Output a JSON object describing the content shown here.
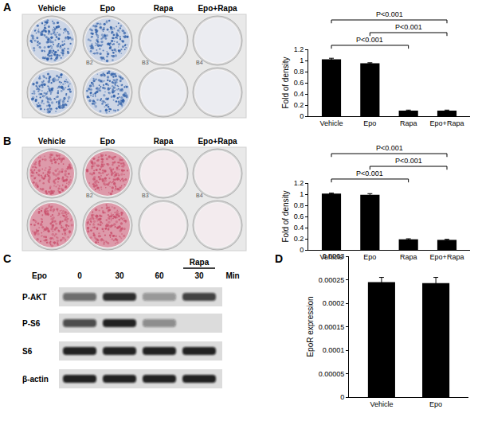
{
  "figure": {
    "panel_labels": [
      "A",
      "B",
      "C",
      "D"
    ],
    "plates": [
      {
        "conditions": [
          "Vehicle",
          "Epo",
          "Rapa",
          "Epo+Rapa"
        ],
        "well_labels": [
          "B2",
          "B3",
          "B4"
        ],
        "color": "#2f5fa8",
        "stained": [
          true,
          true,
          false,
          false
        ]
      },
      {
        "conditions": [
          "Vehicle",
          "Epo",
          "Rapa",
          "Epo+Rapa"
        ],
        "well_labels": [
          "B2",
          "B3",
          "B4"
        ],
        "color": "#c9506c",
        "stained": [
          true,
          true,
          false,
          false
        ]
      }
    ],
    "blot": {
      "treatment_label": "Epo",
      "time_points": [
        0,
        30,
        60,
        30
      ],
      "unit": "Min",
      "inhibitor": {
        "label": "Rapa",
        "applied": [
          false,
          false,
          false,
          true
        ]
      },
      "rows": [
        {
          "name": "P-AKT",
          "intensity": [
            0.55,
            0.85,
            0.35,
            0.75
          ]
        },
        {
          "name": "P-S6",
          "intensity": [
            0.7,
            0.9,
            0.4,
            0.0
          ]
        },
        {
          "name": "S6",
          "intensity": [
            0.9,
            0.9,
            0.9,
            0.9
          ]
        },
        {
          "name": "β-actin",
          "intensity": [
            0.9,
            0.9,
            0.9,
            0.9
          ]
        }
      ]
    }
  },
  "chart_data": [
    {
      "type": "bar",
      "categories": [
        "Vehicle",
        "Epo",
        "Rapa",
        "Epo+Rapa"
      ],
      "values": [
        1.02,
        0.95,
        0.1,
        0.1
      ],
      "errors": [
        0.02,
        0.01,
        0.01,
        0.01
      ],
      "color": "#000000",
      "ylabel": "Fold of density",
      "ylim": [
        0,
        1.2
      ],
      "yticks": [
        0,
        0.2,
        0.4,
        0.6,
        0.8,
        1,
        1.2
      ],
      "grid": false,
      "comparisons": [
        {
          "from": "Vehicle",
          "to": "Rapa",
          "label": "P<0.001"
        },
        {
          "from": "Epo",
          "to": "Epo+Rapa",
          "label": "P<0.001"
        },
        {
          "from": "Vehicle",
          "to": "Epo+Rapa",
          "label": "P<0.001"
        }
      ]
    },
    {
      "type": "bar",
      "categories": [
        "Vehicle",
        "Epo",
        "Rapa",
        "Epo+Rapa"
      ],
      "values": [
        1.01,
        0.99,
        0.19,
        0.18
      ],
      "errors": [
        0.01,
        0.02,
        0.01,
        0.01
      ],
      "color": "#000000",
      "ylabel": "Fold of density",
      "ylim": [
        0,
        1.2
      ],
      "yticks": [
        0,
        0.2,
        0.4,
        0.6,
        0.8,
        1,
        1.2
      ],
      "grid": false,
      "comparisons": [
        {
          "from": "Vehicle",
          "to": "Rapa",
          "label": "P<0.001"
        },
        {
          "from": "Epo",
          "to": "Epo+Rapa",
          "label": "P<0.001"
        },
        {
          "from": "Vehicle",
          "to": "Epo+Rapa",
          "label": "P<0.001"
        }
      ]
    },
    {
      "type": "bar",
      "categories": [
        "Vehicle",
        "Epo"
      ],
      "values": [
        0.000245,
        0.000243
      ],
      "errors": [
        1e-05,
        1.2e-05
      ],
      "color": "#000000",
      "ylabel": "EpoR expression",
      "ylim": [
        0,
        0.0003
      ],
      "yticks": [
        0,
        5e-05,
        0.0001,
        0.00015,
        0.0002,
        0.00025,
        0.0003
      ],
      "grid": false
    }
  ]
}
